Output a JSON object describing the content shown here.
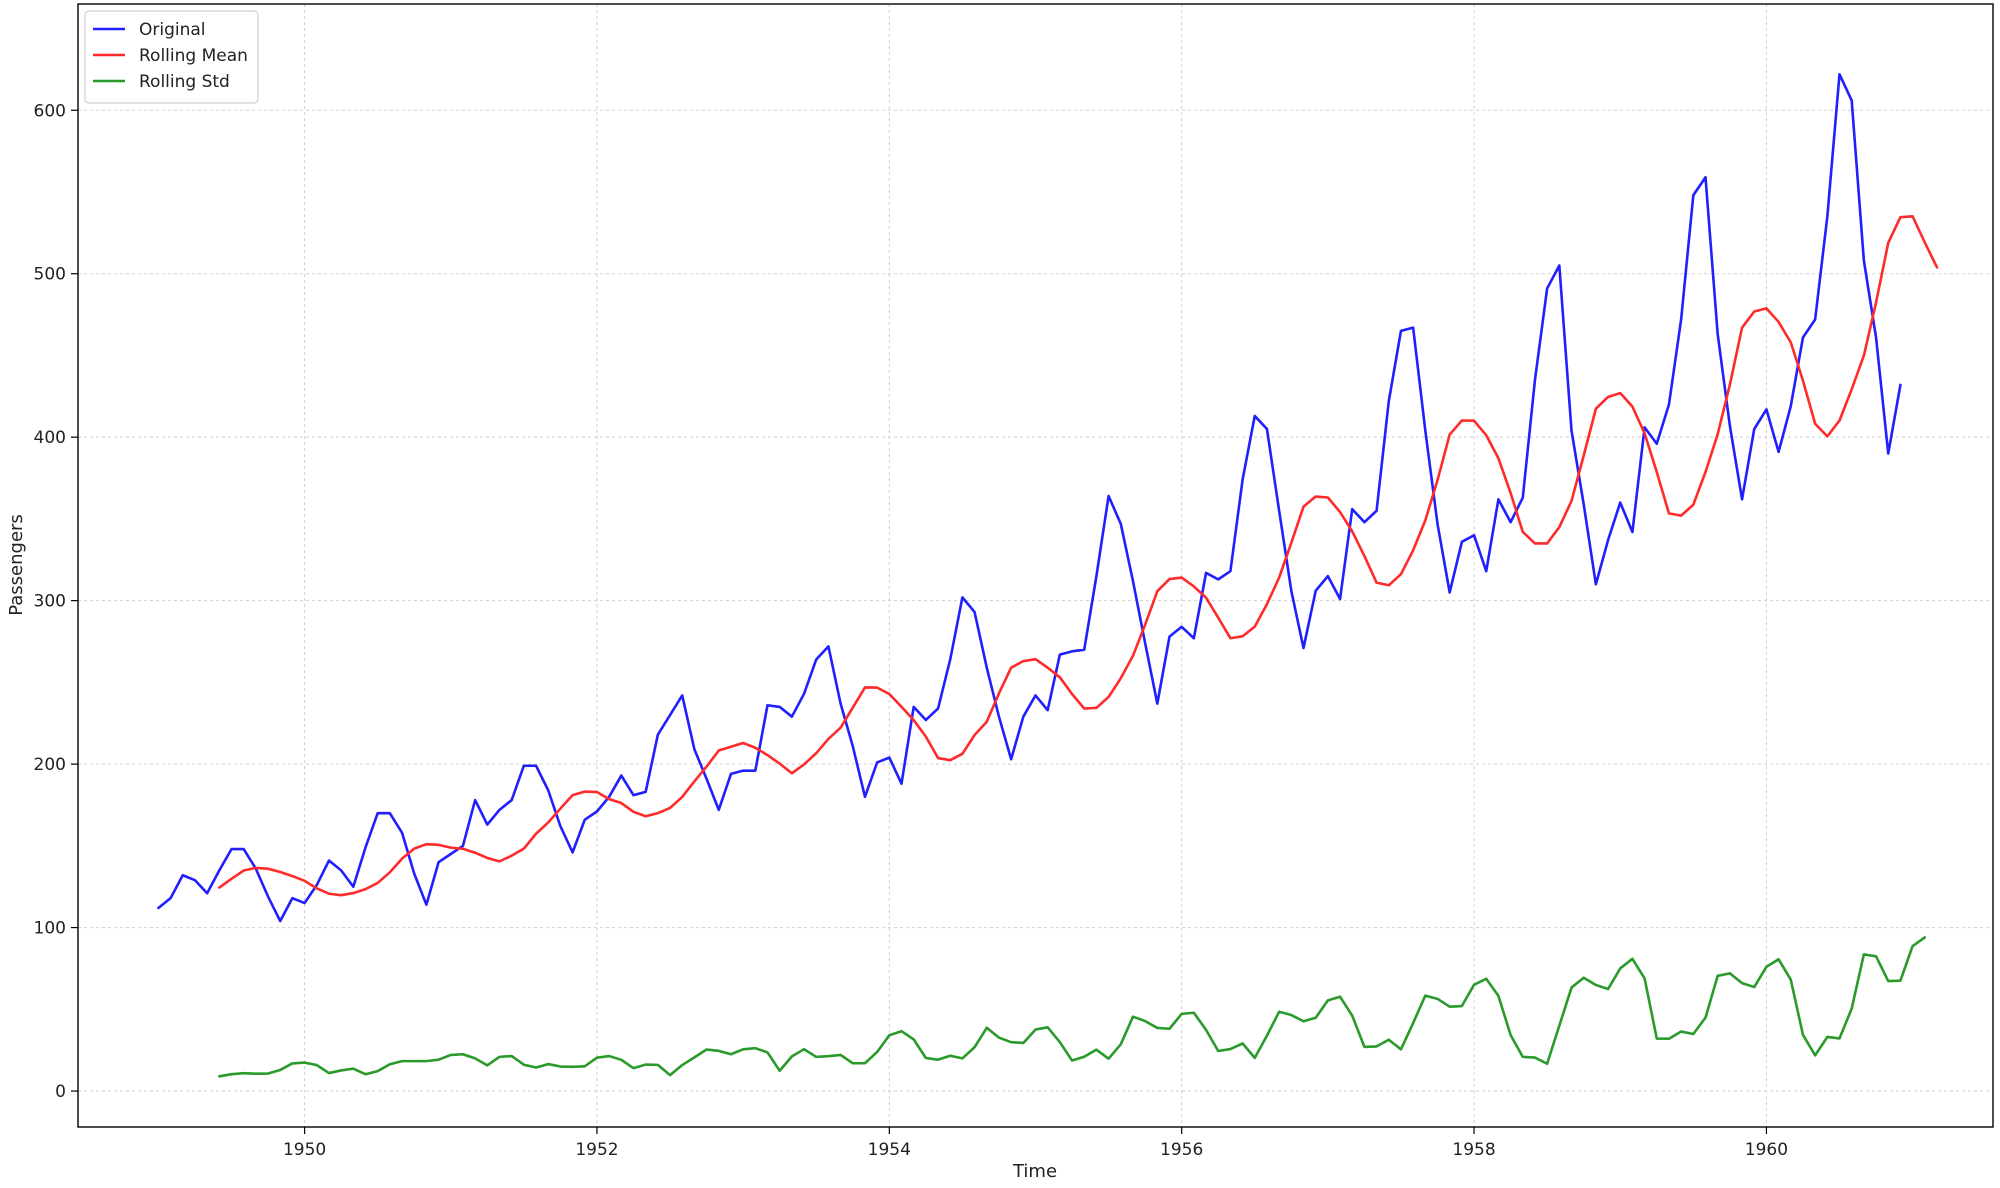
{
  "chart_data": {
    "type": "line",
    "title": "",
    "xlabel": "Time",
    "ylabel": "Passengers",
    "xlim": [
      1948.45,
      1961.55
    ],
    "ylim": [
      -22,
      665
    ],
    "x_ticks": [
      1950,
      1952,
      1954,
      1956,
      1958,
      1960
    ],
    "x_tick_labels": [
      "1950",
      "1952",
      "1954",
      "1956",
      "1958",
      "1960"
    ],
    "y_ticks": [
      0,
      100,
      200,
      300,
      400,
      500,
      600
    ],
    "y_tick_labels": [
      "0",
      "100",
      "200",
      "300",
      "400",
      "500",
      "600"
    ],
    "grid": true,
    "legend_position": "upper left",
    "x_start": 1949.0,
    "x_step_months": 1,
    "series": [
      {
        "name": "Original",
        "color": "#1f1fff",
        "values": [
          112,
          118,
          132,
          129,
          121,
          135,
          148,
          148,
          136,
          119,
          104,
          118,
          115,
          126,
          141,
          135,
          125,
          149,
          170,
          170,
          158,
          133,
          114,
          140,
          145,
          150,
          178,
          163,
          172,
          178,
          199,
          199,
          184,
          162,
          146,
          166,
          171,
          180,
          193,
          181,
          183,
          218,
          230,
          242,
          209,
          191,
          172,
          194,
          196,
          196,
          236,
          235,
          229,
          243,
          264,
          272,
          237,
          211,
          180,
          201,
          204,
          188,
          235,
          227,
          234,
          264,
          302,
          293,
          259,
          229,
          203,
          229,
          242,
          233,
          267,
          269,
          270,
          315,
          364,
          347,
          312,
          274,
          237,
          278,
          284,
          277,
          317,
          313,
          318,
          374,
          413,
          405,
          355,
          306,
          271,
          306,
          315,
          301,
          356,
          348,
          355,
          422,
          465,
          467,
          404,
          347,
          305,
          336,
          340,
          318,
          362,
          348,
          363,
          435,
          491,
          505,
          404,
          359,
          310,
          337,
          360,
          342,
          406,
          396,
          420,
          472,
          548,
          559,
          463,
          407,
          362,
          405,
          417,
          391,
          419,
          461,
          472,
          535,
          622,
          606,
          508,
          461,
          390,
          432
        ]
      },
      {
        "name": "Rolling Mean",
        "color": "#ff2a2a",
        "values": [
          null,
          null,
          null,
          null,
          null,
          124.5,
          129.8,
          134.9,
          136.5,
          136.0,
          134.0,
          131.5,
          128.6,
          124.0,
          120.7,
          119.8,
          121.1,
          123.5,
          127.3,
          133.8,
          142.2,
          148.3,
          151.0,
          150.6,
          148.9,
          148.2,
          145.8,
          142.6,
          140.5,
          144.0,
          148.3,
          157.4,
          164.3,
          172.8,
          181.0,
          183.2,
          182.9,
          178.6,
          176.2,
          170.8,
          168.1,
          170.0,
          173.2,
          179.9,
          189.5,
          198.5,
          208.3,
          210.6,
          212.9,
          210.0,
          205.5,
          200.3,
          194.4,
          199.8,
          206.7,
          215.4,
          222.3,
          234.5,
          246.9,
          246.8,
          242.9,
          235.1,
          226.9,
          216.8,
          203.7,
          202.4,
          206.3,
          217.8,
          225.9,
          243.3,
          259.0,
          263.0,
          264.2,
          259.0,
          253.1,
          242.9,
          234.0,
          234.4,
          241.1,
          252.5,
          266.3,
          285.3,
          305.8,
          313.2,
          314.1,
          308.7,
          301.8,
          289.6,
          277.0,
          278.2,
          284.1,
          297.9,
          314.1,
          335.4,
          357.5,
          363.7,
          363.1,
          354.2,
          342.4,
          327.3,
          311.0,
          309.4,
          316.2,
          330.8,
          349.1,
          373.7,
          401.6,
          410.2,
          410.1,
          401.2,
          387.1,
          365.9,
          342.1,
          335.0,
          335.0,
          345.0,
          361.0,
          388.7,
          417.4,
          424.6,
          427.0,
          418.7,
          402.4,
          378.6,
          353.4,
          352.0,
          358.7,
          378.7,
          401.8,
          432.1,
          467.0,
          476.9,
          478.8,
          470.5,
          458.0,
          434.6,
          408.2,
          400.5,
          410.2,
          429.3,
          449.9,
          482.4,
          518.9,
          534.6,
          535.1,
          519.1,
          503.9
        ]
      },
      {
        "name": "Rolling Std",
        "color": "#2a9a2a",
        "values": [
          null,
          null,
          null,
          null,
          null,
          9.0,
          10.3,
          10.9,
          10.6,
          10.7,
          12.9,
          16.9,
          17.4,
          15.9,
          11.0,
          12.6,
          13.7,
          10.3,
          12.2,
          16.4,
          18.3,
          18.3,
          18.3,
          19.2,
          22.1,
          22.5,
          20.0,
          15.7,
          20.9,
          21.4,
          16.1,
          14.4,
          16.5,
          15.0,
          14.8,
          15.1,
          20.4,
          21.4,
          19.1,
          14.0,
          16.2,
          16.0,
          9.7,
          15.9,
          20.6,
          25.4,
          24.6,
          22.5,
          25.5,
          26.2,
          23.6,
          12.4,
          21.2,
          25.6,
          20.9,
          21.3,
          22.1,
          17.0,
          17.0,
          23.9,
          34.1,
          36.6,
          31.6,
          20.2,
          19.2,
          21.6,
          20.0,
          26.8,
          38.7,
          32.7,
          29.9,
          29.4,
          37.6,
          39.0,
          29.9,
          18.7,
          21.0,
          25.3,
          19.8,
          28.6,
          45.5,
          42.8,
          38.6,
          38.1,
          47.2,
          47.9,
          37.4,
          24.5,
          25.7,
          29.1,
          20.3,
          33.9,
          48.5,
          46.5,
          42.7,
          44.8,
          55.5,
          57.7,
          46.1,
          27.0,
          27.3,
          31.4,
          25.5,
          41.6,
          58.4,
          56.4,
          51.6,
          52.0,
          65.0,
          68.7,
          58.2,
          34.3,
          20.9,
          20.5,
          16.7,
          40.0,
          63.3,
          69.3,
          64.9,
          62.4,
          75.0,
          80.9,
          68.9,
          32.1,
          32.0,
          36.4,
          34.9,
          44.9,
          70.5,
          72.0,
          66.0,
          63.6,
          76.0,
          80.6,
          68.1,
          34.4,
          21.8,
          33.1,
          32.2,
          50.4,
          83.6,
          82.4,
          67.3,
          67.5,
          88.7,
          94.0
        ]
      }
    ]
  }
}
